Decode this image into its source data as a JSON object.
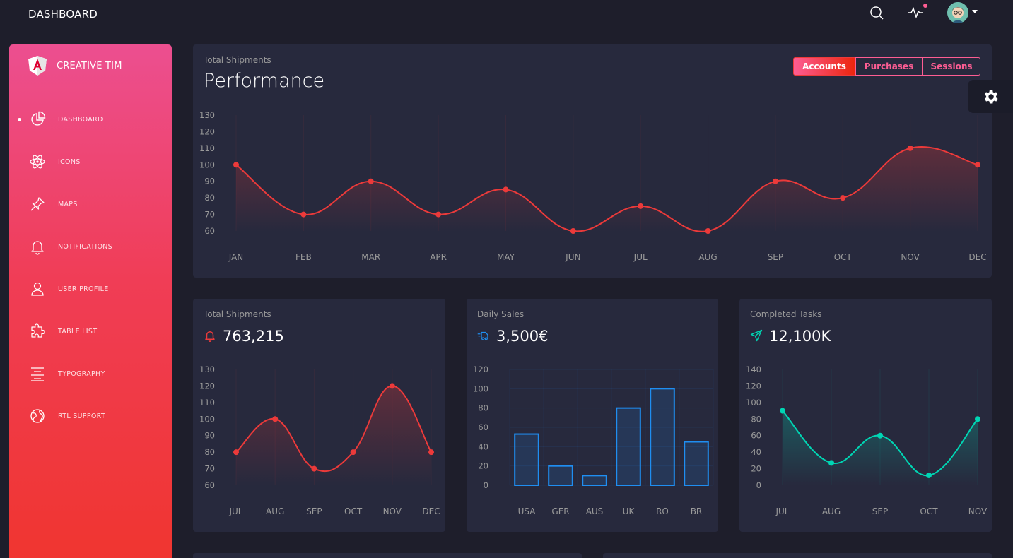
{
  "topbar": {
    "title": "DASHBOARD",
    "icons": [
      "search-icon",
      "pulse-icon",
      "avatar"
    ]
  },
  "sidebar": {
    "brand": "CREATIVE TIM",
    "items": [
      {
        "label": "DASHBOARD",
        "icon": "chart-pie-icon",
        "active": true
      },
      {
        "label": "ICONS",
        "icon": "atom-icon"
      },
      {
        "label": "MAPS",
        "icon": "pin-icon"
      },
      {
        "label": "NOTIFICATIONS",
        "icon": "bell-icon"
      },
      {
        "label": "USER PROFILE",
        "icon": "user-icon"
      },
      {
        "label": "TABLE LIST",
        "icon": "puzzle-icon"
      },
      {
        "label": "TYPOGRAPHY",
        "icon": "align-center-icon"
      },
      {
        "label": "RTL SUPPORT",
        "icon": "world-icon"
      }
    ]
  },
  "main_card": {
    "category": "Total Shipments",
    "title": "Performance",
    "buttons": [
      "Accounts",
      "Purchases",
      "Sessions"
    ],
    "active_button": "Accounts"
  },
  "cards": [
    {
      "category": "Total Shipments",
      "value": "763,215",
      "icon": "bell-icon"
    },
    {
      "category": "Daily Sales",
      "value": "3,500€",
      "icon": "delivery-fast-icon"
    },
    {
      "category": "Completed Tasks",
      "value": "12,100K",
      "icon": "send-icon"
    }
  ],
  "colors": {
    "red": "#ec3a3a",
    "blue": "#1f8ef1",
    "green": "#00d6b4",
    "card_bg": "#27293d",
    "page_bg": "#1e1e2b"
  },
  "chart_data": [
    {
      "type": "line",
      "x": [
        "JAN",
        "FEB",
        "MAR",
        "APR",
        "MAY",
        "JUN",
        "JUL",
        "AUG",
        "SEP",
        "OCT",
        "NOV",
        "DEC"
      ],
      "values": [
        100,
        70,
        90,
        70,
        85,
        60,
        75,
        60,
        90,
        80,
        110,
        100
      ],
      "yticks": [
        60,
        70,
        80,
        90,
        100,
        110,
        120,
        130
      ],
      "ylim": [
        60,
        130
      ]
    },
    {
      "type": "line",
      "x": [
        "JUL",
        "AUG",
        "SEP",
        "OCT",
        "NOV",
        "DEC"
      ],
      "values": [
        80,
        100,
        70,
        80,
        120,
        80
      ],
      "yticks": [
        60,
        70,
        80,
        90,
        100,
        110,
        120,
        130
      ],
      "ylim": [
        60,
        130
      ]
    },
    {
      "type": "bar",
      "categories": [
        "USA",
        "GER",
        "AUS",
        "UK",
        "RO",
        "BR"
      ],
      "values": [
        53,
        20,
        10,
        80,
        100,
        45
      ],
      "yticks": [
        0,
        20,
        40,
        60,
        80,
        100,
        120
      ],
      "ylim": [
        0,
        120
      ]
    },
    {
      "type": "line",
      "x": [
        "JUL",
        "AUG",
        "SEP",
        "OCT",
        "NOV"
      ],
      "values": [
        90,
        27,
        60,
        12,
        80
      ],
      "yticks": [
        0,
        20,
        40,
        60,
        80,
        100,
        120,
        140
      ],
      "ylim": [
        0,
        140
      ]
    }
  ]
}
